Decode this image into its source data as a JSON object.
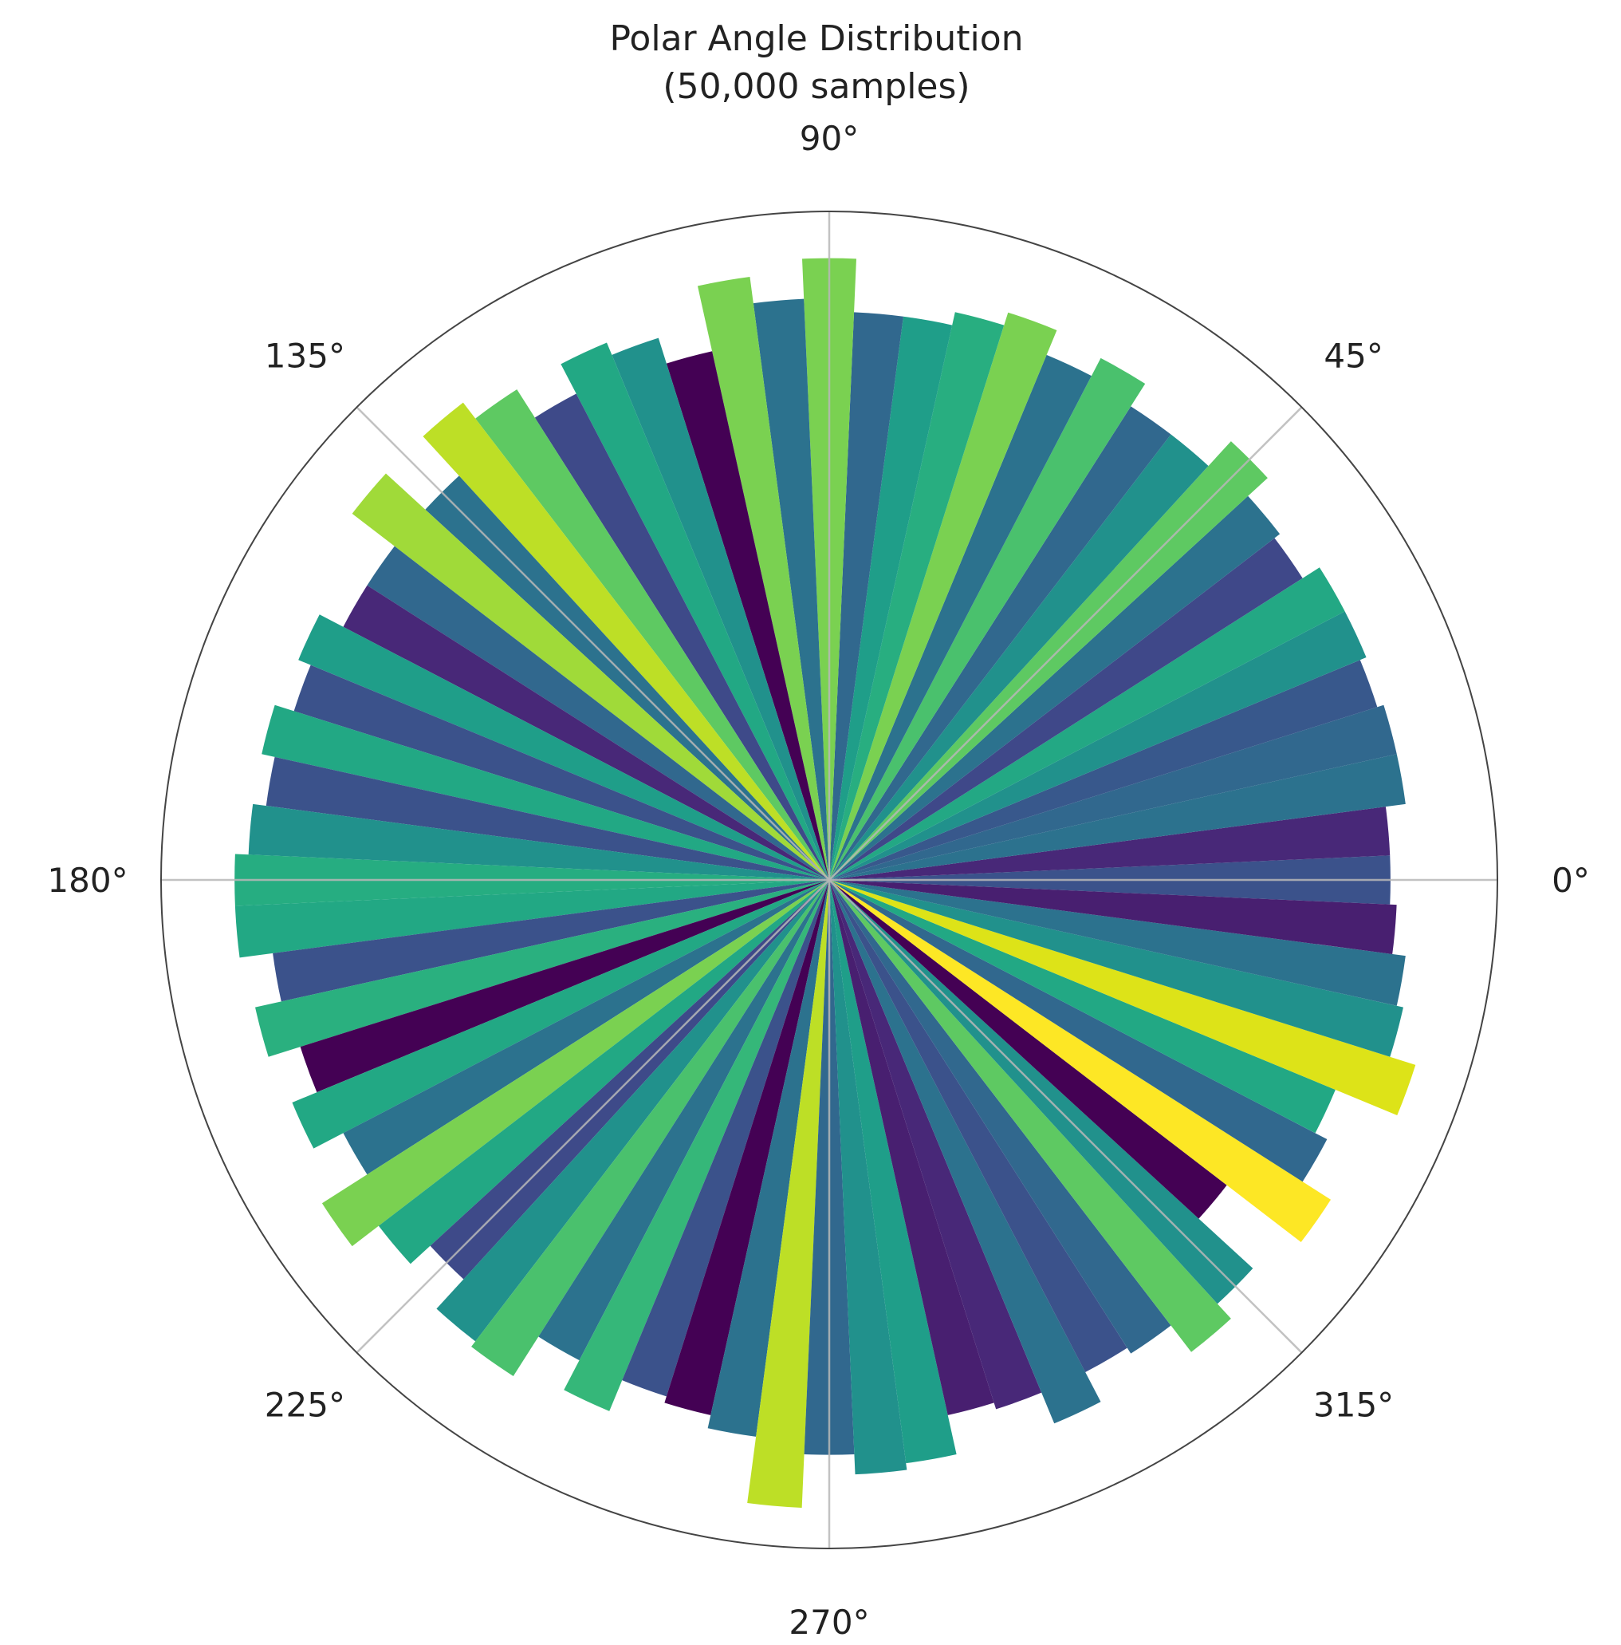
{
  "chart_data": {
    "type": "bar",
    "projection": "polar",
    "title": "Polar Angle Distribution",
    "subtitle": "(50,000 samples)",
    "angular_ticks": [
      "0°",
      "45°",
      "90°",
      "135°",
      "180°",
      "225°",
      "270°",
      "315°"
    ],
    "angular_tick_values_deg": [
      0,
      45,
      90,
      135,
      180,
      225,
      270,
      315
    ],
    "bin_width_deg": 5,
    "rmax": 1.0,
    "grid": true,
    "bins": [
      {
        "angle": 0,
        "value": 0.84,
        "color": "#3b528b"
      },
      {
        "angle": 5,
        "value": 0.84,
        "color": "#482878"
      },
      {
        "angle": 10,
        "value": 0.87,
        "color": "#2c728e"
      },
      {
        "angle": 15,
        "value": 0.87,
        "color": "#31688e"
      },
      {
        "angle": 20,
        "value": 0.86,
        "color": "#38588c"
      },
      {
        "angle": 25,
        "value": 0.87,
        "color": "#21918c"
      },
      {
        "angle": 30,
        "value": 0.87,
        "color": "#23a884"
      },
      {
        "angle": 35,
        "value": 0.84,
        "color": "#3f4889"
      },
      {
        "angle": 40,
        "value": 0.85,
        "color": "#2c728e"
      },
      {
        "angle": 45,
        "value": 0.89,
        "color": "#5ec962"
      },
      {
        "angle": 50,
        "value": 0.84,
        "color": "#21918c"
      },
      {
        "angle": 55,
        "value": 0.84,
        "color": "#31688e"
      },
      {
        "angle": 60,
        "value": 0.88,
        "color": "#4ac16d"
      },
      {
        "angle": 65,
        "value": 0.85,
        "color": "#2c728e"
      },
      {
        "angle": 70,
        "value": 0.89,
        "color": "#7ad151"
      },
      {
        "angle": 75,
        "value": 0.87,
        "color": "#28ae80"
      },
      {
        "angle": 80,
        "value": 0.85,
        "color": "#1f9e89"
      },
      {
        "angle": 85,
        "value": 0.85,
        "color": "#31688e"
      },
      {
        "angle": 90,
        "value": 0.93,
        "color": "#7ad151"
      },
      {
        "angle": 95,
        "value": 0.87,
        "color": "#2c728e"
      },
      {
        "angle": 100,
        "value": 0.91,
        "color": "#7ad151"
      },
      {
        "angle": 105,
        "value": 0.81,
        "color": "#440154"
      },
      {
        "angle": 110,
        "value": 0.85,
        "color": "#21918c"
      },
      {
        "angle": 115,
        "value": 0.87,
        "color": "#22a884"
      },
      {
        "angle": 120,
        "value": 0.82,
        "color": "#3e4a89"
      },
      {
        "angle": 125,
        "value": 0.87,
        "color": "#5ec962"
      },
      {
        "angle": 130,
        "value": 0.9,
        "color": "#bddf26"
      },
      {
        "angle": 135,
        "value": 0.82,
        "color": "#2c728e"
      },
      {
        "angle": 140,
        "value": 0.9,
        "color": "#a0da39"
      },
      {
        "angle": 145,
        "value": 0.82,
        "color": "#31688e"
      },
      {
        "angle": 150,
        "value": 0.82,
        "color": "#482878"
      },
      {
        "angle": 155,
        "value": 0.86,
        "color": "#1f9e89"
      },
      {
        "angle": 160,
        "value": 0.84,
        "color": "#3b528b"
      },
      {
        "angle": 165,
        "value": 0.87,
        "color": "#22a884"
      },
      {
        "angle": 170,
        "value": 0.85,
        "color": "#3b528b"
      },
      {
        "angle": 175,
        "value": 0.87,
        "color": "#21918c"
      },
      {
        "angle": 180,
        "value": 0.89,
        "color": "#26ad81"
      },
      {
        "angle": 185,
        "value": 0.89,
        "color": "#22a884"
      },
      {
        "angle": 190,
        "value": 0.84,
        "color": "#3b528b"
      },
      {
        "angle": 195,
        "value": 0.88,
        "color": "#2ab07f"
      },
      {
        "angle": 200,
        "value": 0.83,
        "color": "#440154"
      },
      {
        "angle": 205,
        "value": 0.87,
        "color": "#22a884"
      },
      {
        "angle": 210,
        "value": 0.82,
        "color": "#2c728e"
      },
      {
        "angle": 215,
        "value": 0.9,
        "color": "#7ad151"
      },
      {
        "angle": 220,
        "value": 0.85,
        "color": "#22a884"
      },
      {
        "angle": 225,
        "value": 0.81,
        "color": "#3e4a89"
      },
      {
        "angle": 230,
        "value": 0.87,
        "color": "#21918c"
      },
      {
        "angle": 235,
        "value": 0.88,
        "color": "#4ac16d"
      },
      {
        "angle": 240,
        "value": 0.81,
        "color": "#2c728e"
      },
      {
        "angle": 245,
        "value": 0.86,
        "color": "#35b779"
      },
      {
        "angle": 250,
        "value": 0.81,
        "color": "#3b528b"
      },
      {
        "angle": 255,
        "value": 0.82,
        "color": "#440154"
      },
      {
        "angle": 260,
        "value": 0.84,
        "color": "#2c728e"
      },
      {
        "angle": 265,
        "value": 0.94,
        "color": "#bddf26"
      },
      {
        "angle": 270,
        "value": 0.86,
        "color": "#31688e"
      },
      {
        "angle": 275,
        "value": 0.89,
        "color": "#21918c"
      },
      {
        "angle": 280,
        "value": 0.88,
        "color": "#1f9e89"
      },
      {
        "angle": 285,
        "value": 0.82,
        "color": "#481f70"
      },
      {
        "angle": 290,
        "value": 0.83,
        "color": "#482878"
      },
      {
        "angle": 295,
        "value": 0.88,
        "color": "#2c728e"
      },
      {
        "angle": 300,
        "value": 0.83,
        "color": "#3b528b"
      },
      {
        "angle": 305,
        "value": 0.84,
        "color": "#31688e"
      },
      {
        "angle": 310,
        "value": 0.89,
        "color": "#5ec962"
      },
      {
        "angle": 315,
        "value": 0.86,
        "color": "#21918c"
      },
      {
        "angle": 320,
        "value": 0.75,
        "color": "#440154"
      },
      {
        "angle": 325,
        "value": 0.89,
        "color": "#fde725"
      },
      {
        "angle": 330,
        "value": 0.84,
        "color": "#31688e"
      },
      {
        "angle": 335,
        "value": 0.82,
        "color": "#22a884"
      },
      {
        "angle": 340,
        "value": 0.92,
        "color": "#dde318"
      },
      {
        "angle": 345,
        "value": 0.88,
        "color": "#21918c"
      },
      {
        "angle": 350,
        "value": 0.87,
        "color": "#2c728e"
      },
      {
        "angle": 355,
        "value": 0.85,
        "color": "#481f70"
      }
    ]
  }
}
